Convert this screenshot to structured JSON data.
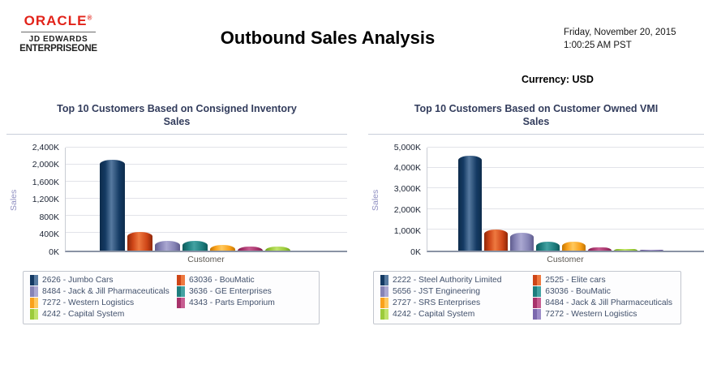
{
  "header": {
    "logo": {
      "brand": "ORACLE",
      "reg_mark": "®",
      "line1": "JD EDWARDS",
      "line2": "ENTERPRISEONE",
      "brand_color": "#e2231a"
    },
    "title": "Outbound Sales Analysis",
    "date_line1": "Friday, November 20, 2015",
    "date_line2": "1:00:25 AM PST",
    "currency_label": "Currency:",
    "currency_value": "USD"
  },
  "chart_data": [
    {
      "type": "bar",
      "title_line1": "Top 10 Customers Based on Consigned Inventory",
      "title_line2": "Sales",
      "xlabel": "Customer",
      "ylabel": "Sales",
      "unit": "K",
      "ylim": [
        0,
        2400
      ],
      "ytick_labels": [
        "0K",
        "400K",
        "800K",
        "1,200K",
        "1,600K",
        "2,000K",
        "2,400K"
      ],
      "grid": true,
      "legend_position": "bottom",
      "bars": [
        {
          "label": "2626 - Jumbo Cars",
          "value": 2100,
          "c_dark": "#0e2c4c",
          "c_base": "#143a63",
          "c_light": "#56799f"
        },
        {
          "label": "63036 - BouMatic",
          "value": 420,
          "c_dark": "#8f2708",
          "c_base": "#ce4517",
          "c_light": "#ee7940"
        },
        {
          "label": "8484 - Jack & Jill Pharmaceuticals",
          "value": 215,
          "c_dark": "#5f5c8e",
          "c_base": "#8683b5",
          "c_light": "#aba8d2"
        },
        {
          "label": "3636 - GE Enterprises",
          "value": 210,
          "c_dark": "#0e5a5a",
          "c_base": "#1e7e7e",
          "c_light": "#43a2a2"
        },
        {
          "label": "7272 - Western Logistics",
          "value": 125,
          "c_dark": "#c27400",
          "c_base": "#f9a11b",
          "c_light": "#ffc95e"
        },
        {
          "label": "4343 - Parts Emporium",
          "value": 90,
          "c_dark": "#7a1f4b",
          "c_base": "#a8336b",
          "c_light": "#c75e91"
        },
        {
          "label": "4242 - Capital System",
          "value": 85,
          "c_dark": "#6fa01e",
          "c_base": "#9ccb3b",
          "c_light": "#c0e36c"
        }
      ]
    },
    {
      "type": "bar",
      "title_line1": "Top 10 Customers Based on Customer Owned VMI",
      "title_line2": "Sales",
      "xlabel": "Customer",
      "ylabel": "Sales",
      "unit": "K",
      "ylim": [
        0,
        5000
      ],
      "ytick_labels": [
        "0K",
        "1,000K",
        "2,000K",
        "3,000K",
        "4,000K",
        "5,000K"
      ],
      "grid": true,
      "legend_position": "bottom",
      "bars": [
        {
          "label": "2222 - Steel Authority Limited",
          "value": 4600,
          "c_dark": "#0e2c4c",
          "c_base": "#143a63",
          "c_light": "#56799f"
        },
        {
          "label": "2525 - Elite cars",
          "value": 1000,
          "c_dark": "#8f2708",
          "c_base": "#ce4517",
          "c_light": "#ee7940"
        },
        {
          "label": "5656 - JST Engineering",
          "value": 850,
          "c_dark": "#5f5c8e",
          "c_base": "#8683b5",
          "c_light": "#aba8d2"
        },
        {
          "label": "63036 - BouMatic",
          "value": 420,
          "c_dark": "#0e5a5a",
          "c_base": "#1e7e7e",
          "c_light": "#43a2a2"
        },
        {
          "label": "2727 - SRS Enterprises",
          "value": 420,
          "c_dark": "#c27400",
          "c_base": "#f9a11b",
          "c_light": "#ffc95e"
        },
        {
          "label": "8484 - Jack & Jill Pharmaceuticals",
          "value": 150,
          "c_dark": "#7a1f4b",
          "c_base": "#a8336b",
          "c_light": "#c75e91"
        },
        {
          "label": "4242 - Capital System",
          "value": 70,
          "c_dark": "#6fa01e",
          "c_base": "#9ccb3b",
          "c_light": "#c0e36c"
        },
        {
          "label": "7272 - Western Logistics",
          "value": 15,
          "c_dark": "#4f3f85",
          "c_base": "#7b68ae",
          "c_light": "#9c8cc8"
        }
      ]
    }
  ]
}
